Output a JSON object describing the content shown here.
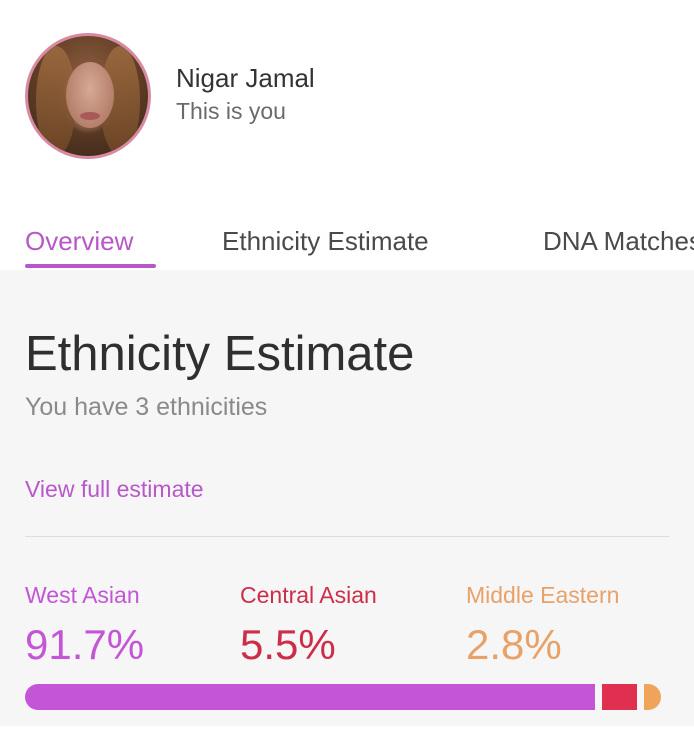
{
  "profile": {
    "name": "Nigar Jamal",
    "subtitle": "This is you"
  },
  "tabs": [
    {
      "label": "Overview",
      "active": true
    },
    {
      "label": "Ethnicity Estimate",
      "active": false
    },
    {
      "label": "DNA Matches",
      "active": false
    }
  ],
  "estimate": {
    "title": "Ethnicity Estimate",
    "subtitle": "You have 3 ethnicities",
    "link_label": "View full estimate",
    "ethnicities": [
      {
        "name": "West Asian",
        "percent_label": "91.7%",
        "percent": 91.7,
        "color": "#c455d6"
      },
      {
        "name": "Central Asian",
        "percent_label": "5.5%",
        "percent": 5.5,
        "color": "#e0304f"
      },
      {
        "name": "Middle Eastern",
        "percent_label": "2.8%",
        "percent": 2.8,
        "color": "#f0a45a"
      }
    ]
  }
}
